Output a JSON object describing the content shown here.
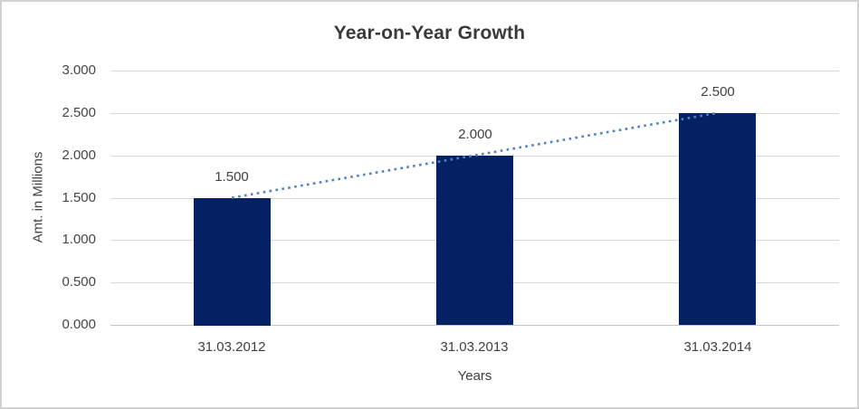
{
  "chart_data": {
    "type": "bar",
    "title": "Year-on-Year Growth",
    "xlabel": "Years",
    "ylabel": "Amt. in Millions",
    "categories": [
      "31.03.2012",
      "31.03.2013",
      "31.03.2014"
    ],
    "values": [
      1.5,
      2.0,
      2.5
    ],
    "data_labels": [
      "1.500",
      "2.000",
      "2.500"
    ],
    "ylim": [
      0,
      3
    ],
    "ytick_step": 0.5,
    "ytick_labels": [
      "0.000",
      "0.500",
      "1.000",
      "1.500",
      "2.000",
      "2.500",
      "3.000"
    ],
    "grid": true,
    "legend": false,
    "trendline": {
      "type": "linear",
      "style": "dotted",
      "color": "#4e82c6"
    },
    "colors": {
      "bar": "#052163",
      "title_text": "#3a3a3a",
      "axis_text": "#454545",
      "gridline": "#d9d9d9",
      "axis_line": "#c4c4c4",
      "frame_border": "#d2d2d2",
      "background": "#ffffff"
    }
  }
}
